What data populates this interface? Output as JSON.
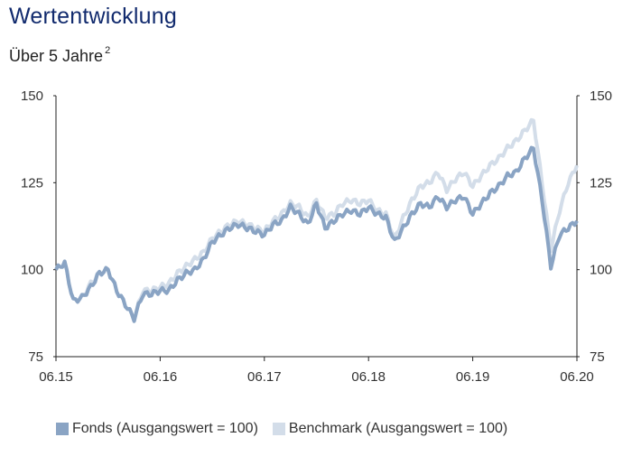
{
  "header": {
    "title": "Wertentwicklung",
    "subtitle": "Über 5 Jahre",
    "footnote": "2"
  },
  "legend": [
    {
      "label": "Fonds (Ausgangswert = 100)",
      "color": "#8aa4c4"
    },
    {
      "label": "Benchmark (Ausgangswert = 100)",
      "color": "#d3dde9"
    }
  ],
  "chart_data": {
    "type": "line",
    "title": "Wertentwicklung",
    "subtitle": "Über 5 Jahre",
    "xlabel": "",
    "ylabel": "",
    "x_ticks": [
      "06.15",
      "06.16",
      "06.17",
      "06.18",
      "06.19",
      "06.20"
    ],
    "y_ticks": [
      75,
      100,
      125,
      150
    ],
    "ylim": [
      75,
      150
    ],
    "grid": false,
    "legend_position": "bottom",
    "x": [
      "06.15",
      "07.15",
      "08.15",
      "09.15",
      "10.15",
      "11.15",
      "12.15",
      "01.16",
      "02.16",
      "03.16",
      "04.16",
      "05.16",
      "06.16",
      "07.16",
      "08.16",
      "09.16",
      "10.16",
      "11.16",
      "12.16",
      "01.17",
      "02.17",
      "03.17",
      "04.17",
      "05.17",
      "06.17",
      "07.17",
      "08.17",
      "09.17",
      "10.17",
      "11.17",
      "12.17",
      "01.18",
      "02.18",
      "03.18",
      "04.18",
      "05.18",
      "06.18",
      "07.18",
      "08.18",
      "09.18",
      "10.18",
      "11.18",
      "12.18",
      "01.19",
      "02.19",
      "03.19",
      "04.19",
      "05.19",
      "06.19",
      "07.19",
      "08.19",
      "09.19",
      "10.19",
      "11.19",
      "12.19",
      "01.20",
      "02.20",
      "03.20",
      "04.20",
      "05.20",
      "06.20"
    ],
    "series": [
      {
        "name": "Fonds (Ausgangswert = 100)",
        "color": "#8aa4c4",
        "values": [
          100,
          102,
          91,
          92,
          95,
          99,
          100,
          94,
          90,
          86,
          93,
          93,
          94,
          94,
          97,
          99,
          100,
          103,
          108,
          110,
          112,
          113,
          112,
          111,
          110,
          113,
          114,
          118,
          116,
          113,
          119,
          112,
          114,
          116,
          117,
          116,
          118,
          116,
          115,
          108,
          112,
          116,
          119,
          118,
          121,
          118,
          120,
          121,
          116,
          119,
          122,
          124,
          127,
          128,
          132,
          135,
          120,
          101,
          110,
          112,
          114
        ]
      },
      {
        "name": "Benchmark (Ausgangswert = 100)",
        "color": "#d3dde9",
        "values": [
          100,
          102,
          91,
          92,
          96,
          99,
          100,
          94,
          90,
          86,
          94,
          94,
          95,
          96,
          99,
          101,
          103,
          105,
          109,
          111,
          113,
          114,
          113,
          112,
          111,
          114,
          116,
          119,
          118,
          115,
          120,
          115,
          116,
          119,
          120,
          119,
          120,
          117,
          116,
          109,
          115,
          120,
          124,
          125,
          128,
          123,
          126,
          128,
          124,
          127,
          130,
          132,
          135,
          137,
          140,
          143,
          125,
          106,
          117,
          125,
          130
        ]
      }
    ]
  }
}
